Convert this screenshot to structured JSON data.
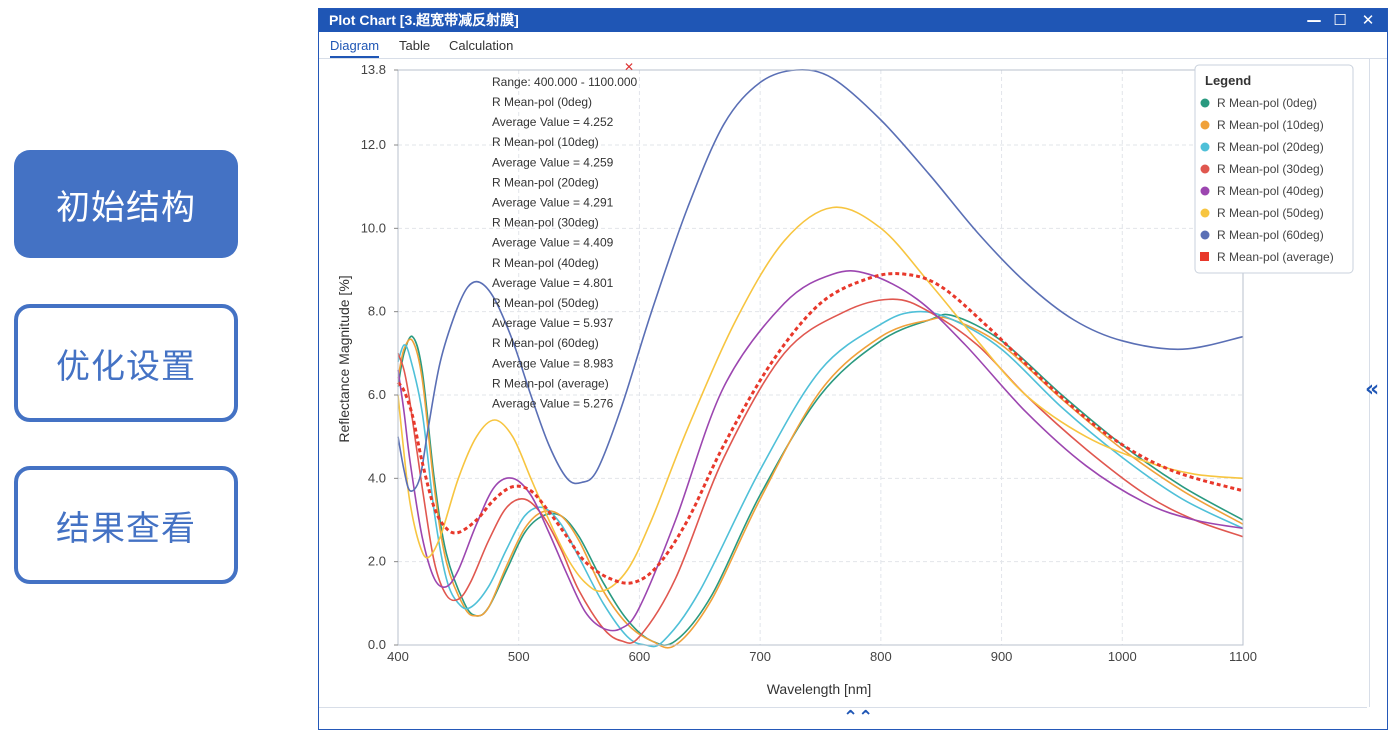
{
  "nav": {
    "initial_structure": "初始结构",
    "optimization_settings": "优化设置",
    "result_view": "结果查看",
    "colors": {
      "accent": "#4472c4"
    }
  },
  "window": {
    "title": "Plot Chart [3.超宽带减反射膜]",
    "minimize_icon": "—",
    "maximize_icon": "☐",
    "close_icon": "✕",
    "side_collapse_icon": "«",
    "bottom_collapse_icon": "⌃⌃",
    "tabs": [
      {
        "label": "Diagram",
        "active": true
      },
      {
        "label": "Table",
        "active": false
      },
      {
        "label": "Calculation",
        "active": false
      }
    ]
  },
  "stats": {
    "range": "Range: 400.000 - 1100.000",
    "lines": [
      "R Mean-pol (0deg)",
      "Average Value = 4.252",
      "R Mean-pol (10deg)",
      "Average Value = 4.259",
      "R Mean-pol (20deg)",
      "Average Value = 4.291",
      "R Mean-pol (30deg)",
      "Average Value = 4.409",
      "R Mean-pol (40deg)",
      "Average Value = 4.801",
      "R Mean-pol (50deg)",
      "Average Value = 5.937",
      "R Mean-pol (60deg)",
      "Average Value = 8.983",
      "R Mean-pol (average)",
      "Average Value = 5.276"
    ]
  },
  "chart_data": {
    "type": "line",
    "xlabel": "Wavelength [nm]",
    "ylabel": "Reflectance Magnitude [%]",
    "xlim": [
      400,
      1100
    ],
    "ylim": [
      0,
      13.8
    ],
    "xticks": [
      400,
      500,
      600,
      700,
      800,
      900,
      1000,
      1100
    ],
    "yticks": [
      0.0,
      2.0,
      4.0,
      6.0,
      8.0,
      10.0,
      12.0,
      13.8
    ],
    "grid": true,
    "legend_title": "Legend",
    "legend_position": "top-right",
    "series": [
      {
        "name": "R Mean-pol (0deg)",
        "color": "#2a9a80",
        "dashed": false,
        "points": [
          [
            400,
            6.2
          ],
          [
            405,
            7.0
          ],
          [
            412,
            7.4
          ],
          [
            420,
            6.6
          ],
          [
            430,
            4.0
          ],
          [
            440,
            2.2
          ],
          [
            455,
            1.0
          ],
          [
            465,
            0.7
          ],
          [
            475,
            0.9
          ],
          [
            490,
            1.8
          ],
          [
            505,
            2.7
          ],
          [
            520,
            3.1
          ],
          [
            535,
            3.1
          ],
          [
            550,
            2.6
          ],
          [
            570,
            1.5
          ],
          [
            590,
            0.6
          ],
          [
            610,
            0.1
          ],
          [
            630,
            0.1
          ],
          [
            660,
            1.2
          ],
          [
            700,
            3.6
          ],
          [
            750,
            6.0
          ],
          [
            800,
            7.3
          ],
          [
            840,
            7.8
          ],
          [
            860,
            7.9
          ],
          [
            900,
            7.3
          ],
          [
            950,
            6.0
          ],
          [
            1000,
            4.8
          ],
          [
            1050,
            3.8
          ],
          [
            1100,
            3.0
          ]
        ]
      },
      {
        "name": "R Mean-pol (10deg)",
        "color": "#f0a13a",
        "dashed": false,
        "points": [
          [
            400,
            6.4
          ],
          [
            405,
            7.1
          ],
          [
            412,
            7.3
          ],
          [
            420,
            6.4
          ],
          [
            430,
            3.8
          ],
          [
            440,
            2.0
          ],
          [
            455,
            0.9
          ],
          [
            465,
            0.7
          ],
          [
            475,
            0.9
          ],
          [
            490,
            1.9
          ],
          [
            505,
            2.8
          ],
          [
            520,
            3.2
          ],
          [
            535,
            3.1
          ],
          [
            550,
            2.5
          ],
          [
            570,
            1.3
          ],
          [
            590,
            0.5
          ],
          [
            610,
            0.1
          ],
          [
            630,
            0.0
          ],
          [
            660,
            1.1
          ],
          [
            700,
            3.5
          ],
          [
            750,
            6.1
          ],
          [
            800,
            7.4
          ],
          [
            840,
            7.8
          ],
          [
            860,
            7.8
          ],
          [
            900,
            7.2
          ],
          [
            950,
            5.9
          ],
          [
            1000,
            4.7
          ],
          [
            1050,
            3.7
          ],
          [
            1100,
            2.9
          ]
        ]
      },
      {
        "name": "R Mean-pol (20deg)",
        "color": "#4fc0d8",
        "dashed": false,
        "points": [
          [
            400,
            6.8
          ],
          [
            405,
            7.2
          ],
          [
            410,
            6.9
          ],
          [
            420,
            5.6
          ],
          [
            430,
            3.2
          ],
          [
            440,
            1.6
          ],
          [
            450,
            1.0
          ],
          [
            460,
            0.9
          ],
          [
            475,
            1.4
          ],
          [
            490,
            2.3
          ],
          [
            505,
            3.1
          ],
          [
            520,
            3.3
          ],
          [
            535,
            2.9
          ],
          [
            550,
            2.1
          ],
          [
            570,
            1.0
          ],
          [
            590,
            0.2
          ],
          [
            605,
            0.0
          ],
          [
            620,
            0.1
          ],
          [
            650,
            1.3
          ],
          [
            700,
            4.2
          ],
          [
            750,
            6.6
          ],
          [
            800,
            7.7
          ],
          [
            830,
            8.0
          ],
          [
            860,
            7.8
          ],
          [
            900,
            7.1
          ],
          [
            950,
            5.7
          ],
          [
            1000,
            4.5
          ],
          [
            1050,
            3.5
          ],
          [
            1100,
            2.8
          ]
        ]
      },
      {
        "name": "R Mean-pol (30deg)",
        "color": "#e0574f",
        "dashed": false,
        "points": [
          [
            400,
            7.0
          ],
          [
            405,
            6.6
          ],
          [
            410,
            5.8
          ],
          [
            420,
            3.8
          ],
          [
            430,
            2.0
          ],
          [
            440,
            1.2
          ],
          [
            450,
            1.1
          ],
          [
            460,
            1.5
          ],
          [
            475,
            2.5
          ],
          [
            490,
            3.3
          ],
          [
            505,
            3.5
          ],
          [
            520,
            3.1
          ],
          [
            535,
            2.3
          ],
          [
            550,
            1.3
          ],
          [
            570,
            0.4
          ],
          [
            585,
            0.1
          ],
          [
            600,
            0.2
          ],
          [
            630,
            1.6
          ],
          [
            670,
            4.5
          ],
          [
            720,
            7.0
          ],
          [
            770,
            8.0
          ],
          [
            810,
            8.3
          ],
          [
            840,
            8.0
          ],
          [
            880,
            7.2
          ],
          [
            920,
            6.0
          ],
          [
            970,
            4.7
          ],
          [
            1020,
            3.6
          ],
          [
            1060,
            3.0
          ],
          [
            1100,
            2.6
          ]
        ]
      },
      {
        "name": "R Mean-pol (40deg)",
        "color": "#9c46b0",
        "dashed": false,
        "points": [
          [
            400,
            6.6
          ],
          [
            405,
            5.6
          ],
          [
            410,
            4.4
          ],
          [
            420,
            2.6
          ],
          [
            430,
            1.6
          ],
          [
            440,
            1.4
          ],
          [
            450,
            1.8
          ],
          [
            465,
            2.9
          ],
          [
            480,
            3.8
          ],
          [
            495,
            4.0
          ],
          [
            510,
            3.6
          ],
          [
            525,
            2.7
          ],
          [
            540,
            1.7
          ],
          [
            555,
            0.8
          ],
          [
            570,
            0.4
          ],
          [
            585,
            0.4
          ],
          [
            600,
            0.9
          ],
          [
            630,
            3.0
          ],
          [
            670,
            6.2
          ],
          [
            720,
            8.2
          ],
          [
            760,
            8.9
          ],
          [
            790,
            8.9
          ],
          [
            830,
            8.3
          ],
          [
            870,
            7.2
          ],
          [
            920,
            5.6
          ],
          [
            970,
            4.3
          ],
          [
            1020,
            3.4
          ],
          [
            1060,
            3.0
          ],
          [
            1100,
            2.8
          ]
        ]
      },
      {
        "name": "R Mean-pol (50deg)",
        "color": "#f7c540",
        "dashed": false,
        "points": [
          [
            400,
            6.0
          ],
          [
            405,
            4.6
          ],
          [
            410,
            3.4
          ],
          [
            418,
            2.4
          ],
          [
            425,
            2.1
          ],
          [
            435,
            2.6
          ],
          [
            450,
            4.0
          ],
          [
            465,
            5.0
          ],
          [
            480,
            5.4
          ],
          [
            495,
            5.0
          ],
          [
            510,
            4.0
          ],
          [
            525,
            3.0
          ],
          [
            540,
            2.1
          ],
          [
            555,
            1.5
          ],
          [
            570,
            1.3
          ],
          [
            590,
            1.8
          ],
          [
            610,
            3.0
          ],
          [
            640,
            5.2
          ],
          [
            680,
            7.8
          ],
          [
            720,
            9.7
          ],
          [
            760,
            10.5
          ],
          [
            800,
            10.0
          ],
          [
            840,
            8.7
          ],
          [
            880,
            7.3
          ],
          [
            920,
            6.0
          ],
          [
            970,
            5.0
          ],
          [
            1020,
            4.4
          ],
          [
            1060,
            4.1
          ],
          [
            1100,
            4.0
          ]
        ]
      },
      {
        "name": "R Mean-pol (60deg)",
        "color": "#5a6fb5",
        "dashed": false,
        "points": [
          [
            400,
            5.0
          ],
          [
            405,
            4.2
          ],
          [
            410,
            3.7
          ],
          [
            418,
            4.0
          ],
          [
            425,
            5.2
          ],
          [
            435,
            6.8
          ],
          [
            448,
            8.0
          ],
          [
            458,
            8.6
          ],
          [
            468,
            8.7
          ],
          [
            480,
            8.3
          ],
          [
            495,
            7.3
          ],
          [
            510,
            6.0
          ],
          [
            525,
            4.8
          ],
          [
            540,
            4.0
          ],
          [
            552,
            3.9
          ],
          [
            565,
            4.2
          ],
          [
            585,
            5.7
          ],
          [
            610,
            8.0
          ],
          [
            640,
            10.5
          ],
          [
            670,
            12.5
          ],
          [
            700,
            13.5
          ],
          [
            730,
            13.8
          ],
          [
            760,
            13.6
          ],
          [
            800,
            12.6
          ],
          [
            840,
            11.3
          ],
          [
            880,
            9.9
          ],
          [
            920,
            8.7
          ],
          [
            960,
            7.8
          ],
          [
            1000,
            7.3
          ],
          [
            1050,
            7.1
          ],
          [
            1100,
            7.4
          ]
        ]
      },
      {
        "name": "R Mean-pol (average)",
        "color": "#e8382b",
        "dashed": true,
        "points": [
          [
            400,
            6.3
          ],
          [
            405,
            6.1
          ],
          [
            412,
            5.5
          ],
          [
            420,
            4.4
          ],
          [
            430,
            3.3
          ],
          [
            440,
            2.8
          ],
          [
            450,
            2.7
          ],
          [
            465,
            3.0
          ],
          [
            480,
            3.5
          ],
          [
            495,
            3.8
          ],
          [
            510,
            3.7
          ],
          [
            525,
            3.2
          ],
          [
            540,
            2.6
          ],
          [
            555,
            2.0
          ],
          [
            575,
            1.6
          ],
          [
            595,
            1.5
          ],
          [
            615,
            1.9
          ],
          [
            640,
            3.0
          ],
          [
            670,
            4.8
          ],
          [
            710,
            6.8
          ],
          [
            750,
            8.2
          ],
          [
            790,
            8.8
          ],
          [
            820,
            8.9
          ],
          [
            850,
            8.6
          ],
          [
            890,
            7.6
          ],
          [
            940,
            6.2
          ],
          [
            990,
            5.0
          ],
          [
            1040,
            4.2
          ],
          [
            1100,
            3.7
          ]
        ]
      }
    ]
  }
}
